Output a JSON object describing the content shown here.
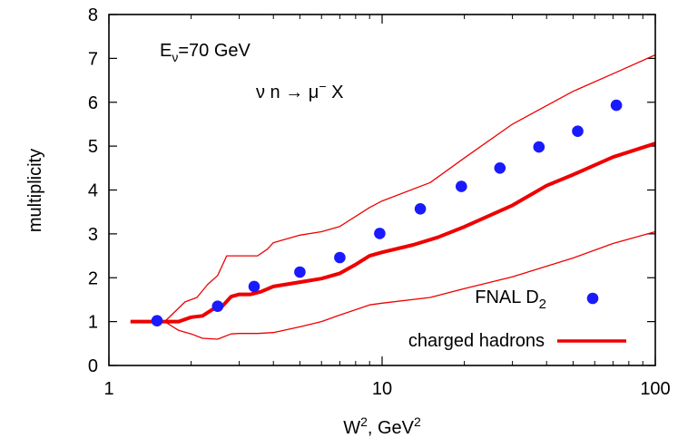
{
  "chart_data": {
    "type": "line",
    "xlabel": "W², GeV²",
    "ylabel": "multiplicity",
    "xscale": "log",
    "xlim": [
      1,
      100
    ],
    "ylim": [
      0,
      8
    ],
    "x_ticks": [
      {
        "value": 1,
        "label": "1"
      },
      {
        "value": 10,
        "label": "10"
      },
      {
        "value": 100,
        "label": "100"
      }
    ],
    "y_ticks": [
      {
        "value": 0,
        "label": "0"
      },
      {
        "value": 1,
        "label": "1"
      },
      {
        "value": 2,
        "label": "2"
      },
      {
        "value": 3,
        "label": "3"
      },
      {
        "value": 4,
        "label": "4"
      },
      {
        "value": 5,
        "label": "5"
      },
      {
        "value": 6,
        "label": "6"
      },
      {
        "value": 7,
        "label": "7"
      },
      {
        "value": 8,
        "label": "8"
      }
    ],
    "annotations": [
      "Eν=70 GeV",
      "ν n → μ⁻ X"
    ],
    "legend_position": "bottom-right",
    "colors": {
      "points": "#1a1aff",
      "curves": "#ee0000"
    },
    "series": [
      {
        "name": "FNAL D₂",
        "kind": "scatter",
        "x": [
          1.5,
          2.5,
          3.4,
          5.0,
          7.0,
          9.8,
          13.8,
          19.5,
          27.0,
          37.5,
          52.0,
          72.0
        ],
        "y": [
          1.02,
          1.35,
          1.8,
          2.13,
          2.46,
          3.01,
          3.57,
          4.08,
          4.5,
          4.98,
          5.34,
          5.93
        ]
      },
      {
        "name": "charged hadrons",
        "kind": "line",
        "x": [
          1.2,
          1.6,
          1.8,
          2.0,
          2.2,
          2.4,
          2.6,
          2.8,
          3.0,
          3.3,
          3.6,
          4.0,
          5.0,
          6.0,
          7.0,
          8.0,
          9.0,
          10,
          13,
          16,
          20,
          30,
          40,
          50,
          70,
          100
        ],
        "y": [
          1.0,
          1.0,
          1.0,
          1.1,
          1.13,
          1.28,
          1.35,
          1.57,
          1.62,
          1.62,
          1.68,
          1.8,
          1.9,
          1.98,
          2.1,
          2.3,
          2.5,
          2.58,
          2.75,
          2.92,
          3.16,
          3.65,
          4.1,
          4.35,
          4.75,
          5.06
        ]
      },
      {
        "name": "",
        "kind": "line",
        "x": [
          1.2,
          1.6,
          1.9,
          2.1,
          2.3,
          2.5,
          2.7,
          3.0,
          3.5,
          3.8,
          4.0,
          5.0,
          6.0,
          7.0,
          9.0,
          10,
          15,
          20,
          30,
          50,
          70,
          100
        ],
        "y": [
          1.0,
          1.0,
          1.45,
          1.55,
          1.85,
          2.05,
          2.5,
          2.5,
          2.5,
          2.65,
          2.8,
          2.97,
          3.05,
          3.17,
          3.6,
          3.75,
          4.17,
          4.73,
          5.5,
          6.25,
          6.65,
          7.08
        ]
      },
      {
        "name": "",
        "kind": "line",
        "x": [
          1.2,
          1.6,
          1.8,
          2.0,
          2.2,
          2.5,
          2.8,
          3.0,
          3.5,
          4.0,
          5.0,
          6.0,
          7.0,
          9.0,
          10,
          15,
          20,
          30,
          50,
          70,
          100
        ],
        "y": [
          1.0,
          1.0,
          0.8,
          0.72,
          0.62,
          0.6,
          0.72,
          0.73,
          0.73,
          0.75,
          0.88,
          1.0,
          1.15,
          1.38,
          1.42,
          1.55,
          1.75,
          2.02,
          2.45,
          2.78,
          3.05
        ]
      }
    ]
  }
}
